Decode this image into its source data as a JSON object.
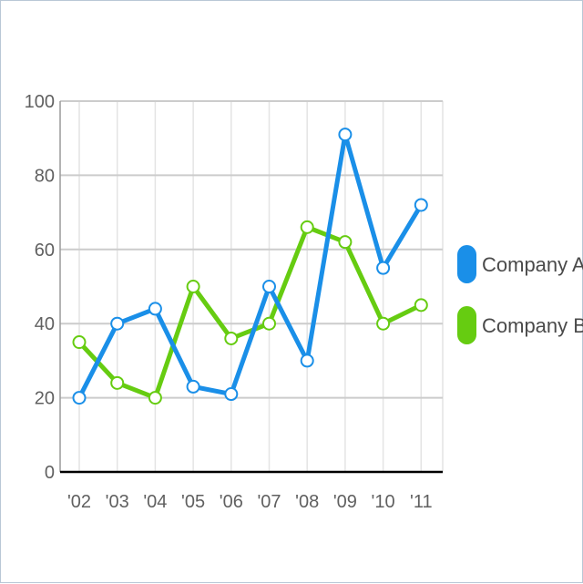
{
  "chart_data": {
    "type": "line",
    "categories": [
      "'02",
      "'03",
      "'04",
      "'05",
      "'06",
      "'07",
      "'08",
      "'09",
      "'10",
      "'11"
    ],
    "series": [
      {
        "name": "Company A",
        "color": "#1a8fe8",
        "values": [
          20,
          40,
          44,
          23,
          21,
          50,
          30,
          91,
          55,
          72
        ]
      },
      {
        "name": "Company B",
        "color": "#66cc11",
        "values": [
          35,
          24,
          20,
          50,
          36,
          40,
          66,
          62,
          40,
          45
        ]
      }
    ],
    "ylim": [
      0,
      100
    ],
    "yticks": [
      0,
      20,
      40,
      60,
      80,
      100
    ],
    "grid": true,
    "legend_position": "right"
  }
}
